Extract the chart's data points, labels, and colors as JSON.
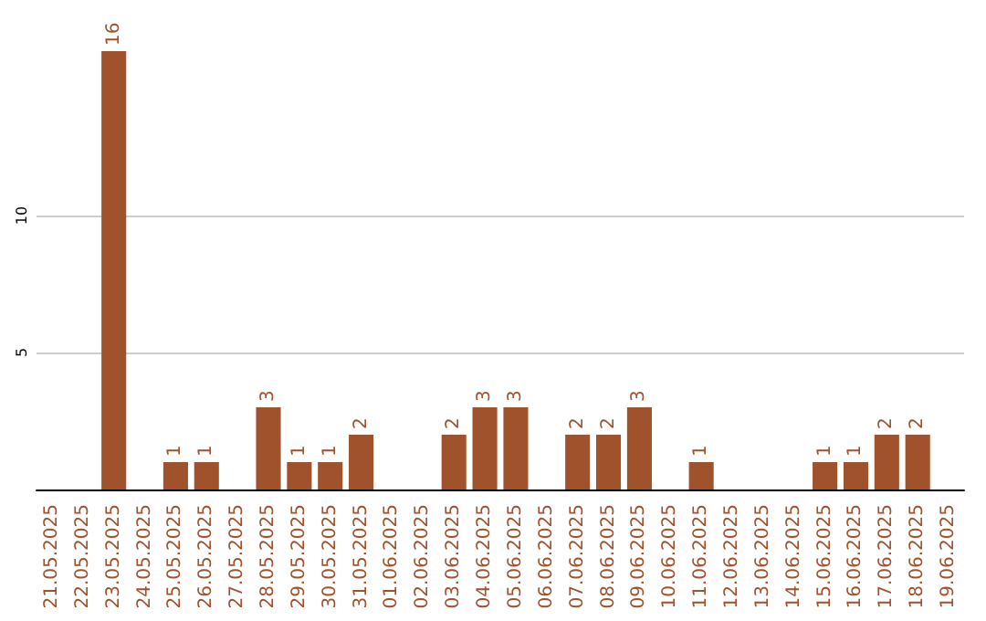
{
  "chart_data": {
    "type": "bar",
    "categories": [
      "21.05.2025",
      "22.05.2025",
      "23.05.2025",
      "24.05.2025",
      "25.05.2025",
      "26.05.2025",
      "27.05.2025",
      "28.05.2025",
      "29.05.2025",
      "30.05.2025",
      "31.05.2025",
      "01.06.2025",
      "02.06.2025",
      "03.06.2025",
      "04.06.2025",
      "05.06.2025",
      "06.06.2025",
      "07.06.2025",
      "08.06.2025",
      "09.06.2025",
      "10.06.2025",
      "11.06.2025",
      "12.06.2025",
      "13.06.2025",
      "14.06.2025",
      "15.06.2025",
      "16.06.2025",
      "17.06.2025",
      "18.06.2025",
      "19.06.2025"
    ],
    "values": [
      null,
      null,
      16,
      null,
      1,
      1,
      null,
      3,
      1,
      1,
      2,
      null,
      null,
      2,
      3,
      3,
      null,
      2,
      2,
      3,
      null,
      1,
      null,
      null,
      null,
      1,
      1,
      2,
      2,
      null
    ],
    "color": "#a0522d",
    "ylim": [
      0,
      16
    ],
    "yticks": [
      5,
      10
    ],
    "grid": "y",
    "data_labels": true
  }
}
